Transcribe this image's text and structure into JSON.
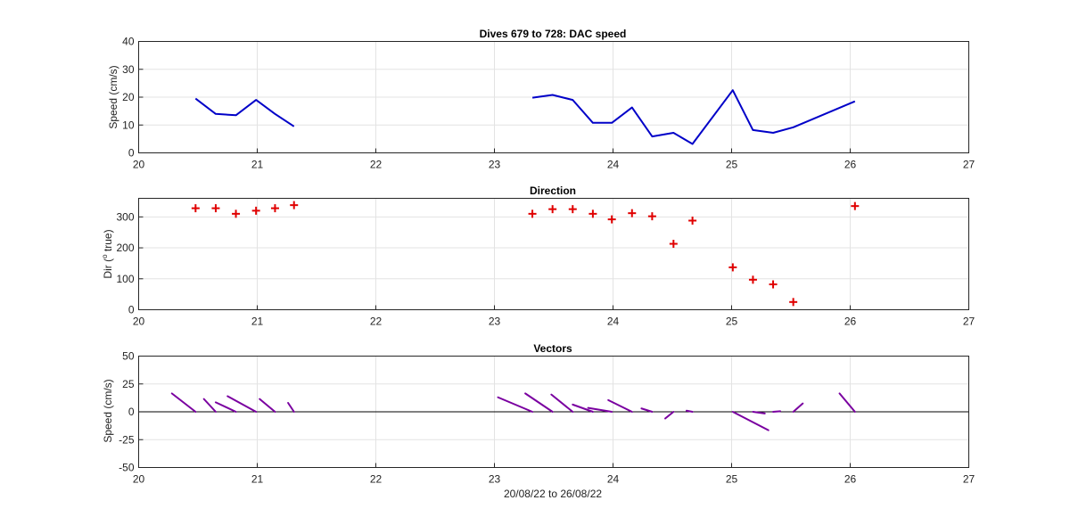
{
  "figure": {
    "xlabel": "20/08/22 to 26/08/22"
  },
  "chart_data": [
    {
      "type": "line",
      "title": "Dives 679 to 728: DAC speed",
      "ylabel": "Speed (cm/s)",
      "xlabel": "",
      "xlim": [
        20,
        27
      ],
      "ylim": [
        0,
        40
      ],
      "xticks": [
        20,
        21,
        22,
        23,
        24,
        25,
        26,
        27
      ],
      "yticks": [
        0,
        10,
        20,
        30,
        40
      ],
      "grid": true,
      "color": "#0000c8",
      "series": [
        {
          "x": [
            20.48,
            20.65,
            20.82,
            20.99,
            21.15,
            21.31
          ],
          "y": [
            19.5,
            14,
            13.5,
            19,
            14,
            9.5
          ]
        },
        {
          "x": [
            23.32,
            23.49,
            23.66,
            23.83,
            23.99,
            24.16,
            24.33,
            24.51,
            24.67,
            25.01,
            25.18,
            25.35,
            25.52,
            26.04
          ],
          "y": [
            19.8,
            20.8,
            19,
            10.8,
            10.8,
            16.3,
            5.9,
            7.2,
            3.2,
            22.5,
            8.2,
            7.2,
            9.2,
            18.5
          ]
        }
      ]
    },
    {
      "type": "scatter",
      "title": "Direction",
      "ylabel": "Dir (",
      "ylabel_sup": "o",
      "ylabel_tail": " true)",
      "xlabel": "",
      "xlim": [
        20,
        27
      ],
      "ylim": [
        0,
        360
      ],
      "xticks": [
        20,
        21,
        22,
        23,
        24,
        25,
        26,
        27
      ],
      "yticks": [
        0,
        100,
        200,
        300
      ],
      "grid": true,
      "color": "#e00000",
      "marker": "+",
      "x": [
        20.48,
        20.65,
        20.82,
        20.99,
        21.15,
        21.31,
        23.32,
        23.49,
        23.66,
        23.83,
        23.99,
        24.16,
        24.33,
        24.51,
        24.67,
        25.01,
        25.18,
        25.35,
        25.52,
        26.04
      ],
      "y": [
        328,
        328,
        310,
        320,
        328,
        338,
        310,
        325,
        325,
        310,
        292,
        312,
        302,
        213,
        288,
        137,
        97,
        82,
        25,
        335
      ]
    },
    {
      "type": "line",
      "title": "Vectors",
      "ylabel": "Speed (cm/s)",
      "xlabel": "",
      "xlim": [
        20,
        27
      ],
      "ylim": [
        -50,
        50
      ],
      "xticks": [
        20,
        21,
        22,
        23,
        24,
        25,
        26,
        27
      ],
      "yticks": [
        -50,
        -25,
        0,
        25,
        50
      ],
      "grid": true,
      "color": "#7a00a0",
      "zeroline": true,
      "segments": [
        {
          "x0": 20.48,
          "x1": 20.28,
          "y1": 16.5
        },
        {
          "x0": 20.65,
          "x1": 20.55,
          "y1": 11.5
        },
        {
          "x0": 20.82,
          "x1": 20.65,
          "y1": 8.5
        },
        {
          "x0": 20.99,
          "x1": 20.75,
          "y1": 14
        },
        {
          "x0": 21.15,
          "x1": 21.02,
          "y1": 11.5
        },
        {
          "x0": 21.31,
          "x1": 21.26,
          "y1": 8
        },
        {
          "x0": 23.32,
          "x1": 23.03,
          "y1": 13
        },
        {
          "x0": 23.49,
          "x1": 23.26,
          "y1": 16.5
        },
        {
          "x0": 23.66,
          "x1": 23.48,
          "y1": 15.5
        },
        {
          "x0": 23.83,
          "x1": 23.66,
          "y1": 6.5
        },
        {
          "x0": 23.99,
          "x1": 23.79,
          "y1": 3.5
        },
        {
          "x0": 24.16,
          "x1": 23.96,
          "y1": 10.5
        },
        {
          "x0": 24.33,
          "x1": 24.24,
          "y1": 3
        },
        {
          "x0": 24.51,
          "x1": 24.44,
          "y1": -6
        },
        {
          "x0": 24.67,
          "x1": 24.62,
          "y1": 1
        },
        {
          "x0": 25.01,
          "x1": 25.31,
          "y1": -16.5
        },
        {
          "x0": 25.18,
          "x1": 25.28,
          "y1": -1.5
        },
        {
          "x0": 25.35,
          "x1": 25.41,
          "y1": 0.5
        },
        {
          "x0": 25.52,
          "x1": 25.6,
          "y1": 7.5
        },
        {
          "x0": 26.04,
          "x1": 25.91,
          "y1": 16.5
        }
      ]
    }
  ]
}
